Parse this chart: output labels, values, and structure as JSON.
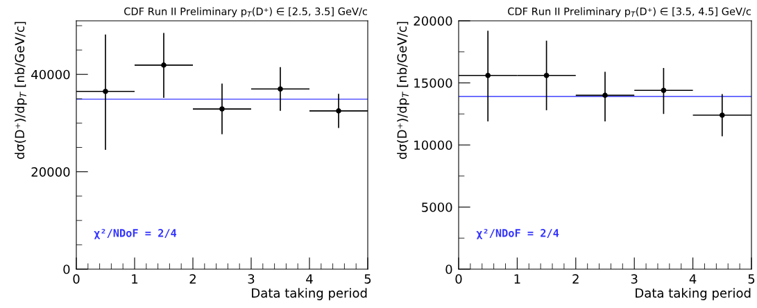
{
  "chart_data": [
    {
      "type": "scatter",
      "title": "CDF Run II Preliminary p$_{T}$(D⁺) ∈ [2.5, 3.5] GeV/c",
      "xlabel": "Data taking period",
      "ylabel": "dσ(D⁺)/dp$_{T}$ [nb/GeV/c]",
      "x": [
        0.5,
        1.5,
        2.5,
        3.5,
        4.5
      ],
      "xlim": [
        0,
        5
      ],
      "xticks": [
        0,
        1,
        2,
        3,
        4,
        5
      ],
      "ylim": [
        0,
        51000
      ],
      "yticks": [
        0,
        20000,
        40000
      ],
      "marker": "circle",
      "grid": false,
      "legend": false,
      "series": [
        {
          "color": "#000000",
          "values": [
            36500,
            41900,
            32900,
            37000,
            32500
          ],
          "xerrors": [
            0.5,
            0.5,
            0.5,
            0.5,
            0.5
          ],
          "errors": [
            [
              24500,
              48200
            ],
            [
              35200,
              48500
            ],
            [
              27700,
              38100
            ],
            [
              32500,
              41500
            ],
            [
              29000,
              36000
            ]
          ]
        }
      ],
      "ref_lines": [
        {
          "axis": "y",
          "value": 34900,
          "color": "#5a5aff"
        }
      ],
      "annotations": [
        "χ²/NDoF = 2/4"
      ]
    },
    {
      "type": "scatter",
      "title": "CDF Run II Preliminary p$_{T}$(D⁺) ∈ [3.5, 4.5] GeV/c",
      "xlabel": "Data taking period",
      "ylabel": "dσ(D⁺)/dp$_{T}$ [nb/GeV/c]",
      "x": [
        0.5,
        1.5,
        2.5,
        3.5,
        4.5
      ],
      "xlim": [
        0,
        5
      ],
      "xticks": [
        0,
        1,
        2,
        3,
        4,
        5
      ],
      "ylim": [
        0,
        20000
      ],
      "yticks": [
        0,
        5000,
        10000,
        15000,
        20000
      ],
      "marker": "circle",
      "grid": false,
      "legend": false,
      "series": [
        {
          "color": "#000000",
          "values": [
            15600,
            15600,
            14000,
            14400,
            12400
          ],
          "xerrors": [
            0.5,
            0.5,
            0.5,
            0.5,
            0.5
          ],
          "errors": [
            [
              11900,
              19200
            ],
            [
              12800,
              18400
            ],
            [
              11900,
              15900
            ],
            [
              12500,
              16200
            ],
            [
              10700,
              14100
            ]
          ]
        }
      ],
      "ref_lines": [
        {
          "axis": "y",
          "value": 13900,
          "color": "#5a5aff"
        }
      ],
      "annotations": [
        "χ²/NDoF = 2/4"
      ]
    }
  ]
}
